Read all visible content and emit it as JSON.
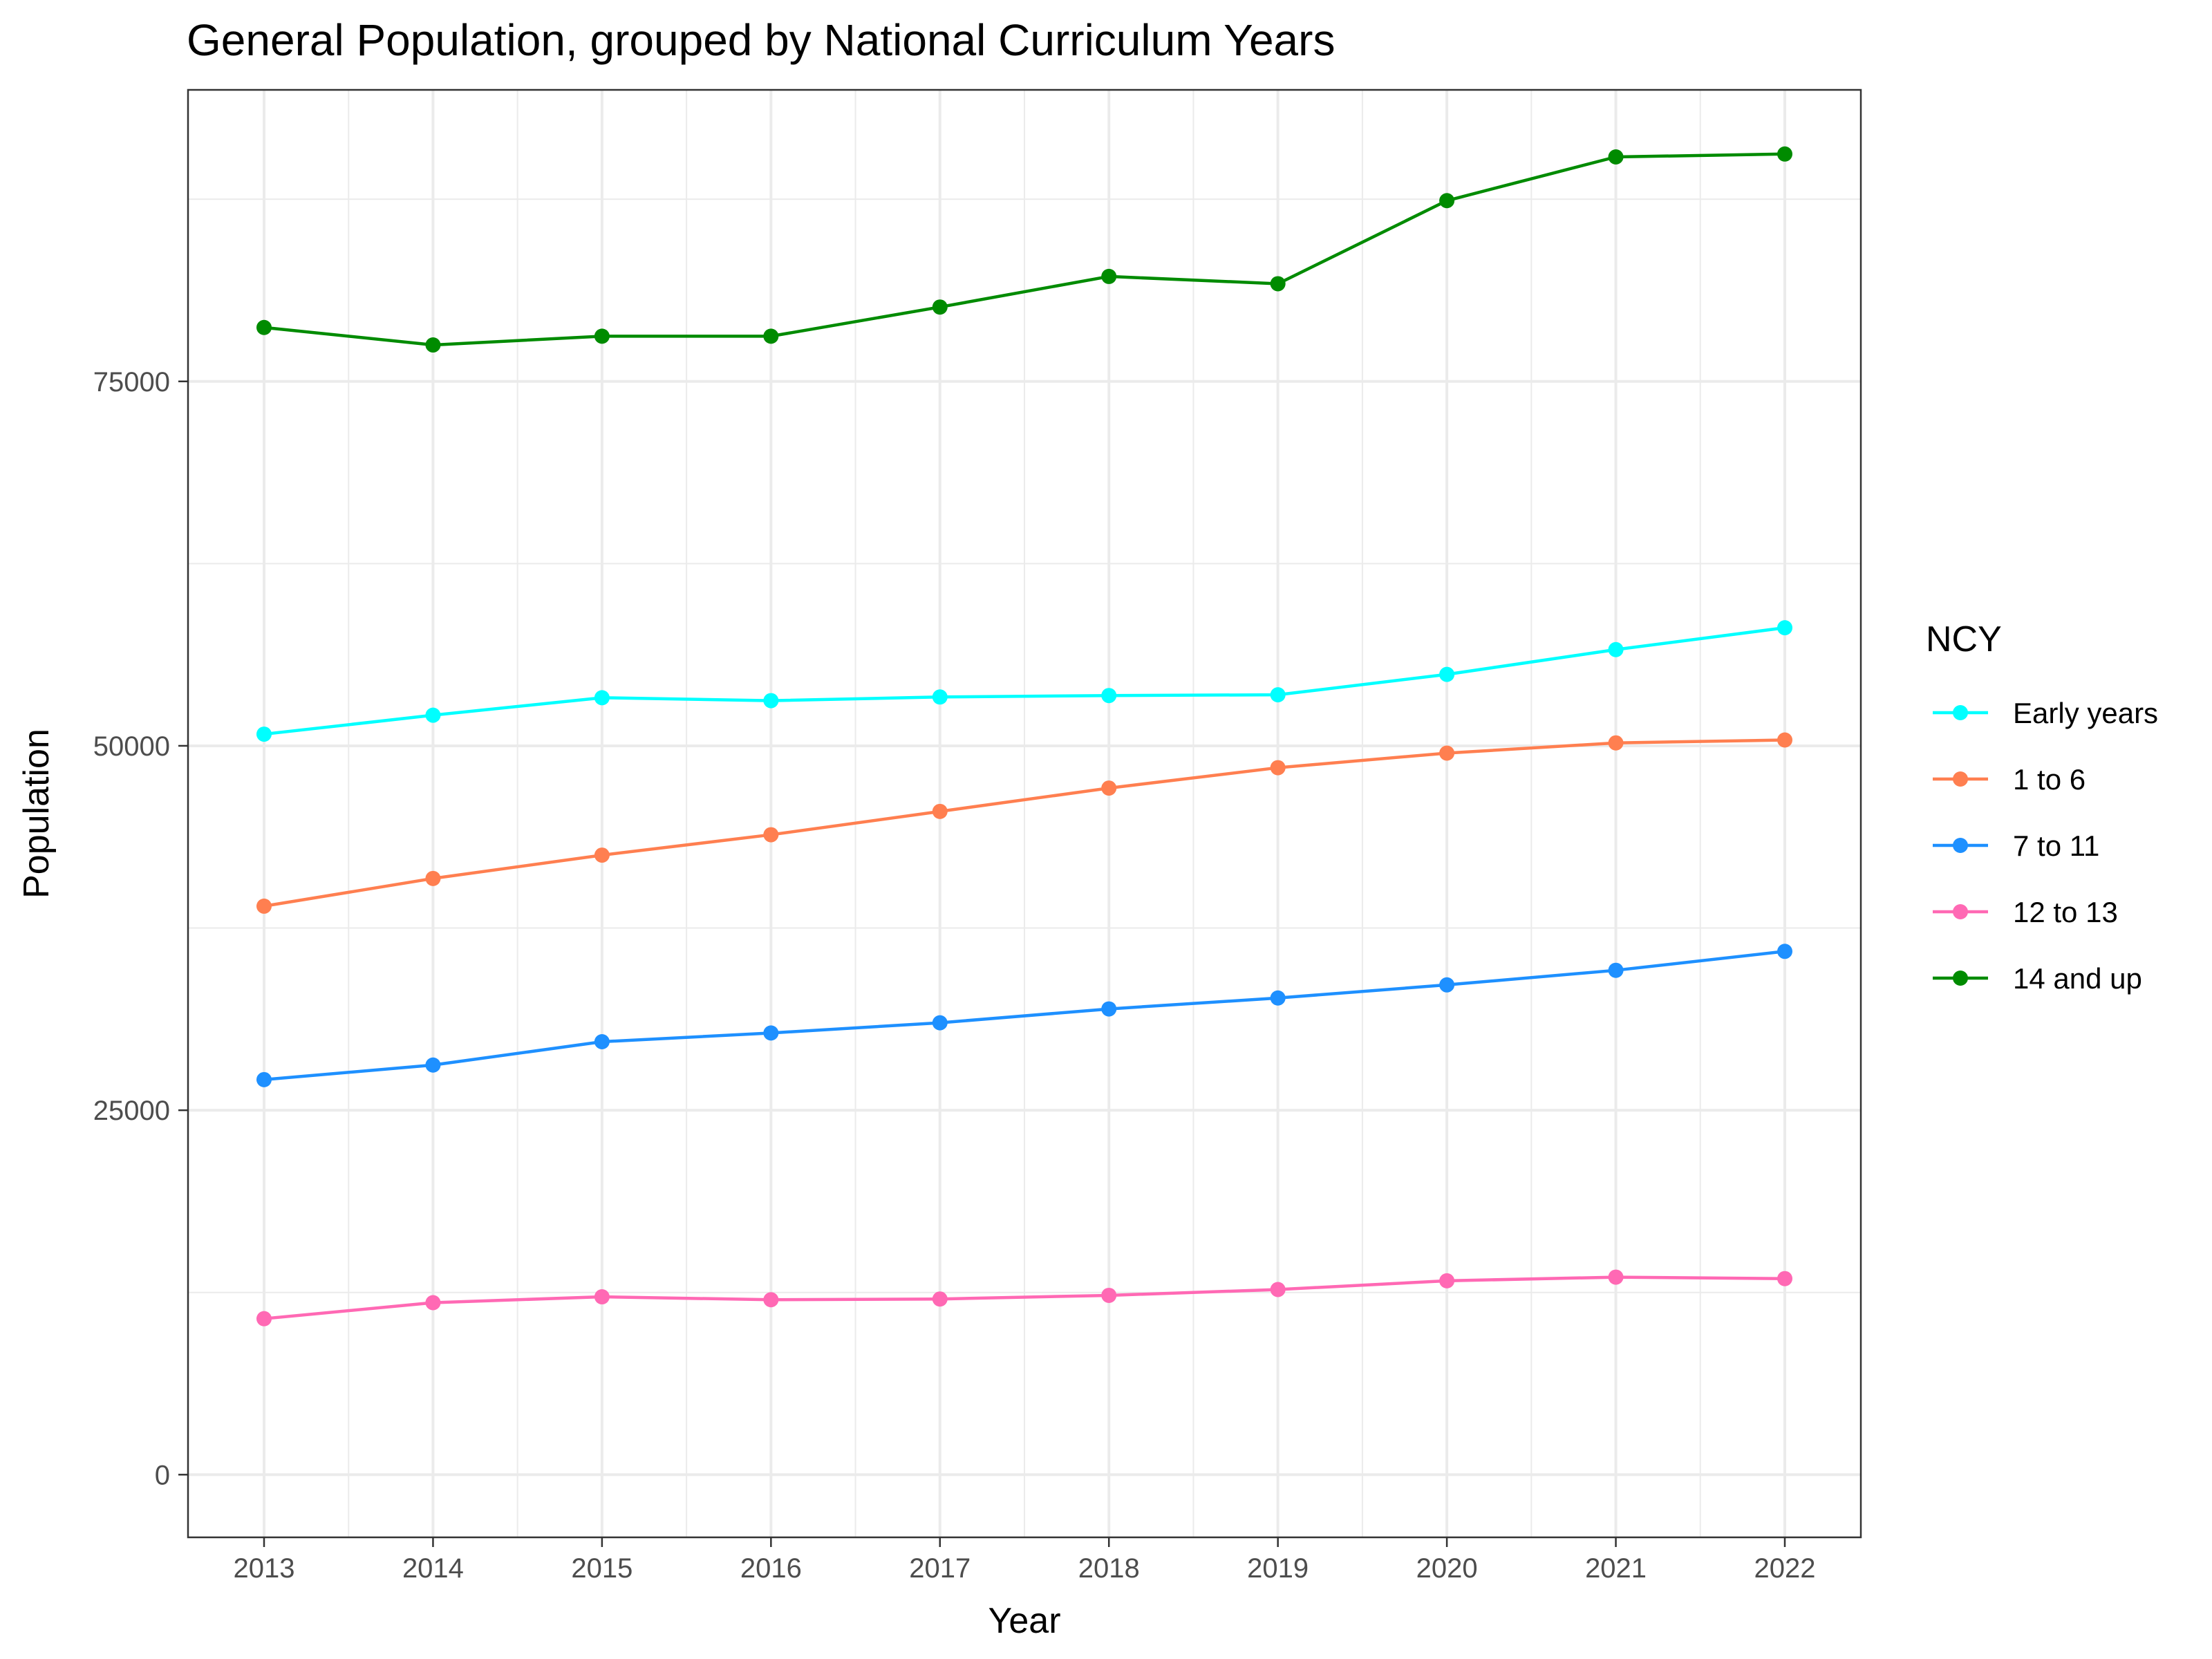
{
  "chart_data": {
    "type": "line",
    "title": "General Population, grouped by National Curriculum Years",
    "xlabel": "Year",
    "ylabel": "Population",
    "x": [
      2013,
      2014,
      2015,
      2016,
      2017,
      2018,
      2019,
      2020,
      2021,
      2022
    ],
    "x_ticks": [
      "2013",
      "2014",
      "2015",
      "2016",
      "2017",
      "2018",
      "2019",
      "2020",
      "2021",
      "2022"
    ],
    "y_ticks": [
      0,
      25000,
      50000,
      75000
    ],
    "y_tick_labels": [
      "0",
      "25000",
      "50000",
      "75000"
    ],
    "xlim": [
      2012.55,
      2022.45
    ],
    "ylim": [
      -4300,
      95000
    ],
    "grid": true,
    "legend": {
      "title": "NCY",
      "position": "right"
    },
    "series": [
      {
        "name": "Early years",
        "color": "#00FFFF",
        "values": [
          50800,
          52100,
          53300,
          53100,
          53350,
          53450,
          53500,
          54900,
          56600,
          58100
        ]
      },
      {
        "name": "1 to 6",
        "color": "#FF7F50",
        "values": [
          39000,
          40900,
          42500,
          43900,
          45500,
          47100,
          48500,
          49500,
          50200,
          50400
        ]
      },
      {
        "name": "7 to 11",
        "color": "#1E90FF",
        "values": [
          27100,
          28100,
          29700,
          30300,
          31000,
          31950,
          32700,
          33600,
          34600,
          35900
        ]
      },
      {
        "name": "12 to 13",
        "color": "#FF69B4",
        "values": [
          10700,
          11800,
          12200,
          12000,
          12050,
          12300,
          12700,
          13300,
          13550,
          13450
        ]
      },
      {
        "name": "14 and up",
        "color": "#008B00",
        "values": [
          78700,
          77500,
          78100,
          78100,
          80100,
          82200,
          81700,
          87400,
          90400,
          90600
        ]
      }
    ]
  }
}
